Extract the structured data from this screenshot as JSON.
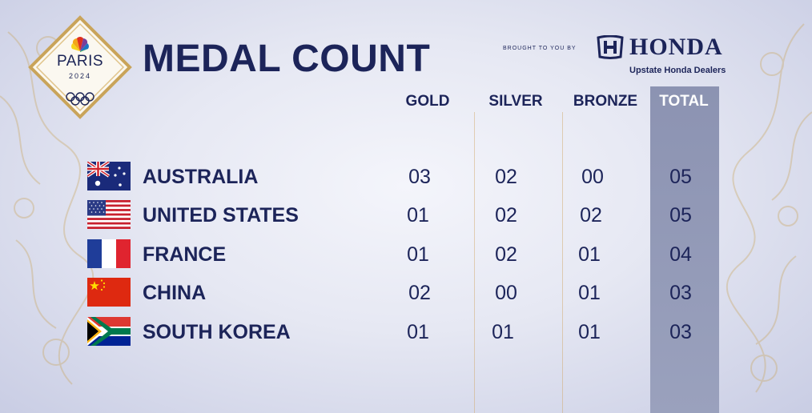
{
  "logo": {
    "city": "PARIS",
    "year": "2024"
  },
  "title": "MEDAL COUNT",
  "sponsor": {
    "pre": "BROUGHT TO YOU BY",
    "brand": "HONDA",
    "dealers": "Upstate Honda Dealers"
  },
  "columns": [
    "GOLD",
    "SILVER",
    "BRONZE",
    "TOTAL"
  ],
  "rows": [
    {
      "country": "AUSTRALIA",
      "flag": "australia-flag",
      "gold": "03",
      "silver": "02",
      "bronze": "00",
      "total": "05"
    },
    {
      "country": "UNITED STATES",
      "flag": "united-states-flag",
      "gold": "01",
      "silver": "02",
      "bronze": "02",
      "total": "05"
    },
    {
      "country": "FRANCE",
      "flag": "france-flag",
      "gold": "01",
      "silver": "02",
      "bronze": "01",
      "total": "04"
    },
    {
      "country": "CHINA",
      "flag": "china-flag",
      "gold": "02",
      "silver": "00",
      "bronze": "01",
      "total": "03"
    },
    {
      "country": "SOUTH KOREA",
      "flag": "south-africa-flag",
      "gold": "01",
      "silver": "01",
      "bronze": "01",
      "total": "03"
    }
  ],
  "colors": {
    "navy": "#1c2459",
    "gold_accent": "#c9a45a",
    "total_band": "#9299b6"
  }
}
